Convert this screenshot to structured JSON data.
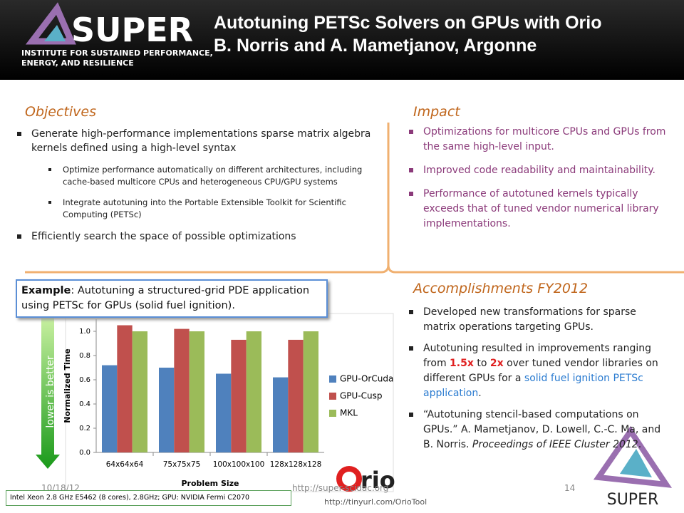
{
  "header": {
    "logo": "SUPER",
    "logo_subtitle": [
      "INSTITUTE FOR SUSTAINED PERFORMANCE,",
      "ENERGY, AND RESILIENCE"
    ],
    "title": [
      "Autotuning PETSc Solvers on GPUs with Orio",
      "B. Norris and A. Mametjanov, Argonne"
    ]
  },
  "objectives": {
    "heading": "Objectives",
    "items": [
      {
        "text": "Generate high-performance implementations sparse matrix algebra kernels defined using a high-level syntax",
        "subitems": [
          "Optimize performance automatically on different architectures, including cache-based multicore CPUs and heterogeneous CPU/GPU systems",
          "Integrate autotuning into the Portable Extensible Toolkit for Scientific Computing (PETSc)"
        ]
      },
      {
        "text": "Efficiently search the space of possible optimizations"
      }
    ]
  },
  "impact": {
    "heading": "Impact",
    "items": [
      "Optimizations for multicore CPUs and GPUs from the same high-level input.",
      "Improved code readability and maintainability.",
      "Performance of autotuned kernels typically exceeds that of tuned vendor numerical library implementations."
    ]
  },
  "accomplishments": {
    "heading": "Accomplishments FY2012",
    "items": [
      [
        "Developed new transformations for sparse matrix operations targeting GPUs."
      ],
      [
        "Autotuning resulted in improvements ranging from ",
        "1.5x",
        " to ",
        "2x",
        " over tuned vendor libraries on different GPUs for a ",
        "solid fuel ignition PETSc application",
        "."
      ],
      [
        "“Autotuning stencil-based computations on GPUs.” A. Mametjanov, D. Lowell, C.-C. Ma, and B. Norris. ",
        "Proceedings of IEEE Cluster 2012",
        "."
      ]
    ]
  },
  "example": {
    "label": "Example",
    "text": ": Autotuning a structured-grid PDE application using PETSc for GPUs (solid fuel ignition)."
  },
  "arrow_label": "lower is better",
  "chart_data": {
    "type": "bar",
    "categories": [
      "64x64x64",
      "75x75x75",
      "100x100x100",
      "128x128x128"
    ],
    "series": [
      {
        "name": "GPU-OrCuda",
        "color": "#4f81bd",
        "values": [
          0.72,
          0.7,
          0.65,
          0.62
        ]
      },
      {
        "name": "GPU-Cusp",
        "color": "#c0504d",
        "values": [
          1.05,
          1.02,
          0.93,
          0.93
        ]
      },
      {
        "name": "MKL",
        "color": "#9bbb59",
        "values": [
          1.0,
          1.0,
          1.0,
          1.0
        ]
      }
    ],
    "ylabel": "Normalized Time",
    "xlabel": "Problem Size",
    "ylim": [
      0,
      1.1
    ],
    "yticks": [
      {
        "value": 0,
        "label": "0.0"
      },
      0.2,
      0.4,
      0.6,
      0.8,
      {
        "value": 1,
        "label": "1.0"
      }
    ],
    "grid": false
  },
  "footer": {
    "date": "10/18/12",
    "url": "http://super-scidac.org",
    "page": "14",
    "orio_logo": "rio",
    "orio_url": "http://tinyurl.com/OrioTool",
    "hardware": "Intel Xeon 2.8 GHz E5462 (8 cores), 2.8GHz; GPU: NVIDIA Fermi C2070",
    "logo": "SUPER"
  }
}
